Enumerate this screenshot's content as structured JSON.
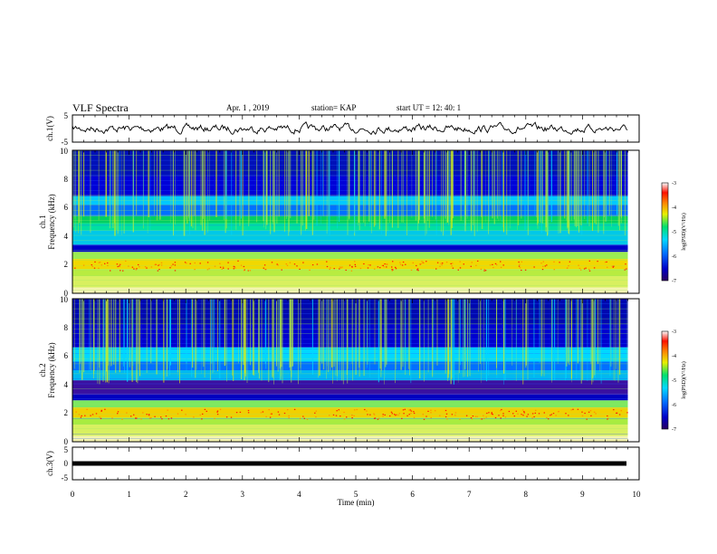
{
  "header": {
    "title": "VLF Spectra",
    "date": "Apr. 1  , 2019",
    "station": "station= KAP",
    "start_ut": "start  UT  =   12: 40: 1"
  },
  "chart_data": [
    {
      "type": "line",
      "panel": "ch1-waveform",
      "ylabel": "ch.1(V)",
      "ylim": [
        -5,
        5
      ],
      "yticks": [
        "5",
        "-5"
      ],
      "xlim": [
        0,
        10
      ]
    },
    {
      "type": "heatmap",
      "panel": "ch1-spectrogram",
      "ylabel": "ch.1\nFrequency  (kHz)",
      "ylim": [
        0,
        10
      ],
      "yticks": [
        "0",
        "2",
        "4",
        "6",
        "8",
        "10"
      ],
      "xlim": [
        0,
        10
      ],
      "data_end_min": 9.8,
      "colorbar": {
        "label": "log(PSD)(V²/Hz)",
        "range": [
          -7,
          -3
        ],
        "ticks": [
          "-3",
          "-4",
          "-5",
          "-6",
          "-7"
        ]
      }
    },
    {
      "type": "heatmap",
      "panel": "ch2-spectrogram",
      "ylabel": "ch.2\nFrequency  (kHz)",
      "ylim": [
        0,
        10
      ],
      "yticks": [
        "0",
        "2",
        "4",
        "6",
        "8",
        "10"
      ],
      "xlim": [
        0,
        10
      ],
      "data_end_min": 9.8,
      "colorbar": {
        "label": "log(PSD)(V²/Hz)",
        "range": [
          -7,
          -3
        ],
        "ticks": [
          "-3",
          "-4",
          "-5",
          "-6",
          "-7"
        ]
      }
    },
    {
      "type": "line",
      "panel": "ch3-waveform",
      "ylabel": "ch.3(V)",
      "ylim": [
        -5,
        5
      ],
      "yticks": [
        "5",
        "0",
        "-5"
      ],
      "constant_value": 0,
      "xlim": [
        0,
        10
      ]
    }
  ],
  "xaxis": {
    "label": "Time  (min)",
    "ticks": [
      "0",
      "1",
      "2",
      "3",
      "4",
      "5",
      "6",
      "7",
      "8",
      "9",
      "10"
    ]
  },
  "colors": {
    "background": "#ffffff",
    "line": "#000000"
  }
}
